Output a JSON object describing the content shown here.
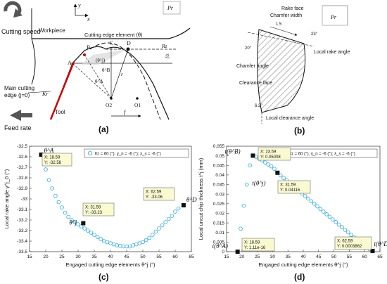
{
  "panel_a": {
    "caption": "(a)",
    "cutting_speed": "Cutting speed",
    "feed_rate": "Feed rate",
    "workpiece": "Workpiece",
    "tool": "Tool",
    "element_label": "Cutting edge element (θ)",
    "main_edge": [
      "Main cutting",
      "edge (j=0)"
    ],
    "kr": "Kr",
    "rz": "Rz",
    "fz": "f/z",
    "f": "f",
    "points": {
      "A": "A",
      "B": "B",
      "C": "C",
      "D": "D",
      "O1": "O1",
      "O2": "O2",
      "r": "r"
    },
    "angles": {
      "theta_j": "(θ^j)",
      "theta_a": "θ^A",
      "theta_b": "θ^B"
    },
    "axes": {
      "x": "x",
      "y": "y"
    },
    "pr": "Pr"
  },
  "panel_b": {
    "caption": "(b)",
    "rake_face": "Rake face",
    "chamfer_width": "Chamfer width",
    "chamfer_value": "1.5",
    "chamfer_angle": "Chamfer angle",
    "chamfer_angle_value": "20°",
    "angle_value_top": "23°",
    "local_rake": "Local rake angle",
    "clearance_face": "Clearance face",
    "local_clearance": "Local clearance angle",
    "clearance_value": "6.2°",
    "pr": "Pr"
  },
  "panel_c": {
    "caption": "(c)",
    "chart_data": {
      "type": "scatter",
      "xlabel": "Engaged cutting edge elements θ^j (°)",
      "ylabel": "Local rake angle γ^j_0 (°)",
      "xlim": [
        15,
        65
      ],
      "ylim": [
        -33.5,
        -32.5
      ],
      "xticks": [
        15,
        20,
        25,
        30,
        35,
        40,
        45,
        50,
        55,
        60,
        65
      ],
      "yticks": [
        -32.5,
        -32.6,
        -32.7,
        -32.8,
        -32.9,
        -33,
        -33.1,
        -33.2,
        -33.3,
        -33.4,
        -33.5
      ],
      "legend": "Kr = 60 (°); γ_n = -6 (°); λ_s = -6 (°)",
      "legend_position": "top-right",
      "series": [
        {
          "x": [
            18.59,
            20,
            21,
            22,
            23,
            24,
            25,
            26,
            27,
            28,
            29,
            30,
            31,
            32,
            33,
            34,
            35,
            36,
            37,
            38,
            39,
            40,
            41,
            42,
            43,
            44,
            45,
            46,
            47,
            48,
            49,
            50,
            51,
            52,
            53,
            54,
            55,
            56,
            57,
            58,
            59,
            60,
            61,
            62.59
          ],
          "y": [
            -32.58,
            -32.72,
            -32.82,
            -32.9,
            -32.97,
            -33.03,
            -33.08,
            -33.13,
            -33.17,
            -33.2,
            -33.22,
            -33.24,
            -33.26,
            -33.28,
            -33.3,
            -33.32,
            -33.34,
            -33.36,
            -33.38,
            -33.4,
            -33.41,
            -33.42,
            -33.43,
            -33.44,
            -33.445,
            -33.45,
            -33.45,
            -33.45,
            -33.44,
            -33.43,
            -33.42,
            -33.41,
            -33.39,
            -33.37,
            -33.34,
            -33.31,
            -33.28,
            -33.25,
            -33.22,
            -33.19,
            -33.16,
            -33.12,
            -33.09,
            -33.06
          ]
        }
      ],
      "markers": [
        {
          "x": 18.59,
          "y": -32.58,
          "label": "θ^A"
        },
        {
          "x": 31.59,
          "y": -33.23,
          "label": "θ^j"
        },
        {
          "x": 62.59,
          "y": -33.06,
          "label": "θ^D"
        }
      ],
      "datatips": [
        {
          "x_text": "X: 18.59",
          "y_text": "Y: -32.58"
        },
        {
          "x_text": "X: 31.59",
          "y_text": "Y: -33.23"
        },
        {
          "x_text": "X: 62.59",
          "y_text": "Y: -33.06"
        }
      ]
    }
  },
  "panel_d": {
    "caption": "(d)",
    "chart_data": {
      "type": "scatter",
      "xlabel": "Engaged cutting edge elements θ^j (°)",
      "ylabel": "Local uncut chip thickness t^j (mm)",
      "xlim": [
        15,
        65
      ],
      "ylim": [
        0,
        0.055
      ],
      "xticks": [
        15,
        20,
        25,
        30,
        35,
        40,
        45,
        50,
        55,
        60,
        65
      ],
      "yticks": [
        0,
        0.005,
        0.01,
        0.015,
        0.02,
        0.025,
        0.03,
        0.035,
        0.04,
        0.045,
        0.05,
        0.055
      ],
      "legend": "Kr = 60 (°); γ_n = -6 (°); λ_s = -6 (°)",
      "legend_position": "top-right",
      "series": [
        {
          "x": [
            18.59,
            19.59,
            20.59,
            21.59,
            22.59,
            23.59,
            24.59,
            25.59,
            26.59,
            27.59,
            28.59,
            29.59,
            30.59,
            31.59,
            32.59,
            33.59,
            34.59,
            35.59,
            36.59,
            37.59,
            38.59,
            39.59,
            40.59,
            41.59,
            42.59,
            43.59,
            44.59,
            45.59,
            46.59,
            47.59,
            48.59,
            49.59,
            50.59,
            51.59,
            52.59,
            53.59,
            54.59,
            55.59,
            56.59,
            57.59,
            58.59,
            59.59,
            60.59,
            61.59,
            62.59
          ],
          "y": [
            0.0,
            0.012,
            0.024,
            0.035,
            0.045,
            0.05008,
            0.0495,
            0.0485,
            0.0475,
            0.0465,
            0.0455,
            0.0445,
            0.0432,
            0.04116,
            0.0398,
            0.0385,
            0.0372,
            0.0358,
            0.0345,
            0.0331,
            0.0318,
            0.0304,
            0.029,
            0.0277,
            0.0263,
            0.025,
            0.0236,
            0.0222,
            0.0209,
            0.0195,
            0.0182,
            0.0168,
            0.0155,
            0.0141,
            0.0128,
            0.0114,
            0.0101,
            0.0088,
            0.0075,
            0.0062,
            0.0049,
            0.0036,
            0.0024,
            0.0013,
            0.0003862
          ]
        }
      ],
      "markers": [
        {
          "x": 18.59,
          "y": 0.0,
          "label": "t(θ^A)"
        },
        {
          "x": 23.59,
          "y": 0.05008,
          "label": "t(θ^B)"
        },
        {
          "x": 31.59,
          "y": 0.04116,
          "label": "t(θ^j)"
        },
        {
          "x": 62.59,
          "y": 0.0003862,
          "label": "t(θ^D)"
        }
      ],
      "datatips": [
        {
          "x_text": "X: 18.59",
          "y_text": "Y: 1.11e-16"
        },
        {
          "x_text": "X: 23.59",
          "y_text": "Y: 0.05008"
        },
        {
          "x_text": "X: 31.59",
          "y_text": "Y: 0.04116"
        },
        {
          "x_text": "X: 62.59",
          "y_text": "Y: 0.0003862"
        }
      ]
    }
  }
}
